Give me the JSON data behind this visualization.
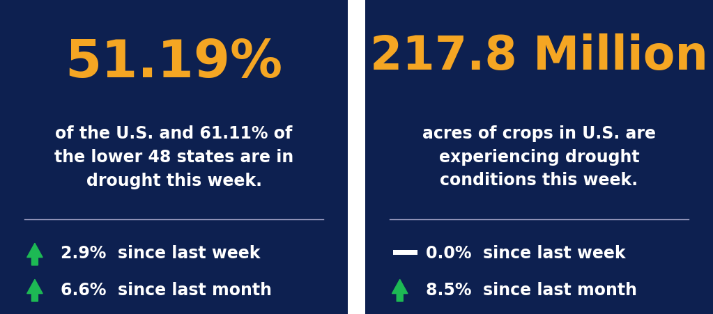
{
  "bg_color": "#0d2050",
  "divider_color": "#aaaacc",
  "orange_color": "#f5a623",
  "white_color": "#ffffff",
  "green_color": "#1db954",
  "gap_color": "#ffffff",
  "left_big_text": "51.19%",
  "left_body_text": "of the U.S. and 61.11% of\nthe lower 48 states are in\ndrought this week.",
  "left_week_pct": "2.9%  since last week",
  "left_month_pct": "6.6%  since last month",
  "right_big_text": "217.8 Million",
  "right_body_text": "acres of crops in U.S. are\nexperiencing drought\nconditions this week.",
  "right_week_pct": "0.0%  since last week",
  "right_month_pct": "8.5%  since last month"
}
